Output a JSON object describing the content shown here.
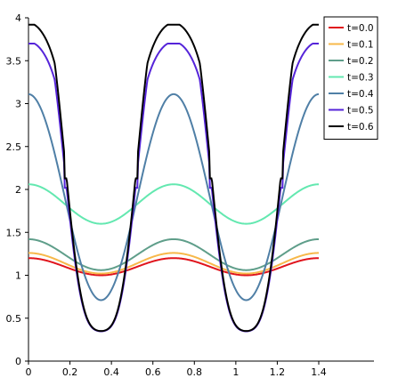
{
  "chart_data": {
    "type": "line",
    "title": "",
    "xlabel": "",
    "ylabel": "",
    "xlim": [
      0,
      1.4
    ],
    "ylim": [
      0,
      4
    ],
    "x_ticks": [
      0,
      0.2,
      0.4,
      0.6,
      0.8,
      1,
      1.2,
      1.4
    ],
    "x_tick_labels": [
      "0",
      "0.2",
      "0.4",
      "0.6",
      "0.8",
      "1",
      "1.2",
      "1.4"
    ],
    "y_ticks": [
      0,
      0.5,
      1,
      1.5,
      2,
      2.5,
      3,
      3.5,
      4
    ],
    "y_tick_labels": [
      "0",
      "0.5",
      "1",
      "1.5",
      "2",
      "2.5",
      "3",
      "3.5",
      "4"
    ],
    "grid": false,
    "legend_position": "top-right",
    "period": 0.7,
    "series": [
      {
        "name": "t=0.0",
        "color": "#e0141c",
        "max": 1.2,
        "min": 1.0,
        "shape": "cosine"
      },
      {
        "name": "t=0.1",
        "color": "#f7b84a",
        "max": 1.26,
        "min": 1.02,
        "shape": "cosine"
      },
      {
        "name": "t=0.2",
        "color": "#5f9e8a",
        "max": 1.42,
        "min": 1.06,
        "shape": "cosine"
      },
      {
        "name": "t=0.3",
        "color": "#63e8b0",
        "max": 2.06,
        "min": 1.6,
        "shape": "cosine"
      },
      {
        "name": "t=0.4",
        "color": "#4f7fa6",
        "max": 3.11,
        "min": 0.71,
        "shape": "cosine"
      },
      {
        "name": "t=0.5",
        "color": "#5524d9",
        "max": 3.7,
        "min": 0.3,
        "shape": "clipped"
      },
      {
        "name": "t=0.6",
        "color": "#000000",
        "max": 3.92,
        "min": 0.3,
        "shape": "clipped"
      }
    ]
  }
}
